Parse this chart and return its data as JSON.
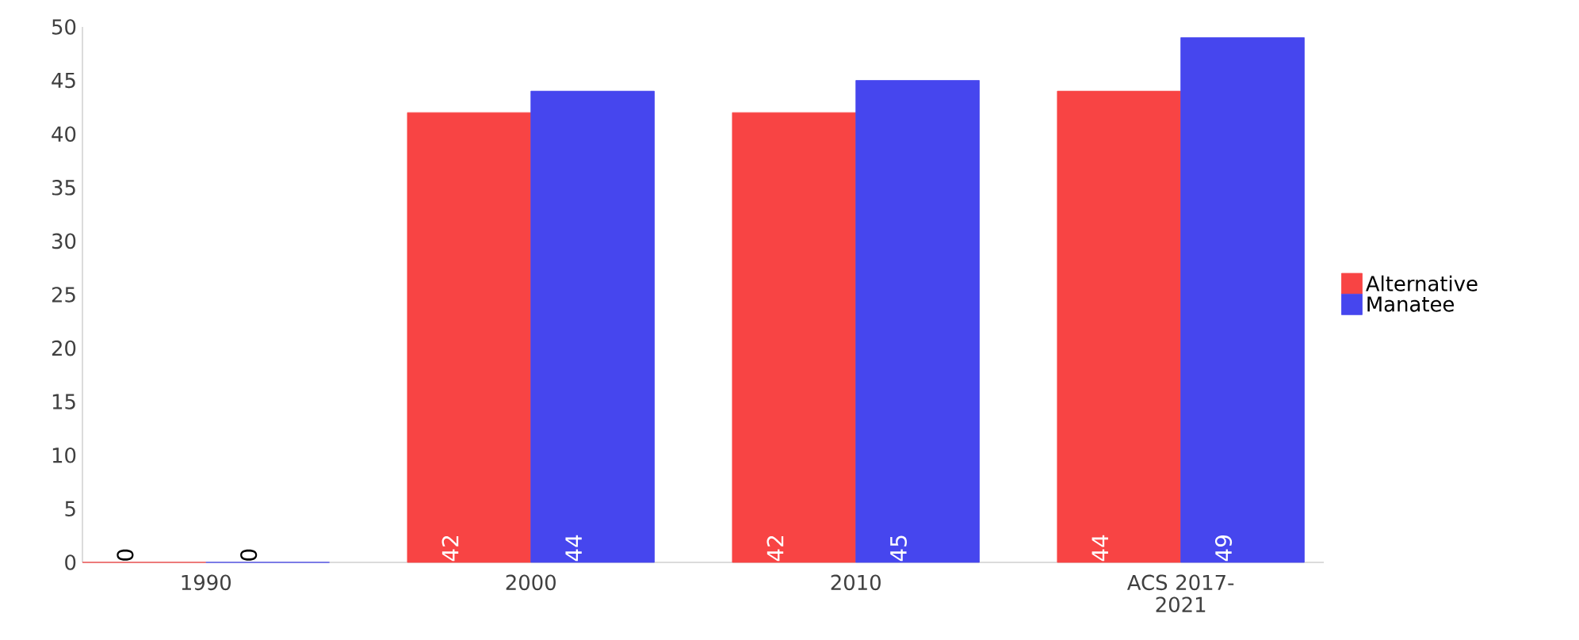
{
  "chart_data": {
    "type": "bar",
    "categories": [
      "1990",
      "2000",
      "2010",
      "ACS 2017-2021"
    ],
    "series": [
      {
        "name": "Alternative",
        "color": "#f84444",
        "values": [
          0,
          42,
          42,
          44
        ]
      },
      {
        "name": "Manatee",
        "color": "#4646ee",
        "values": [
          0,
          44,
          45,
          49
        ]
      }
    ],
    "ylim": [
      0,
      50
    ],
    "yticks": [
      0,
      5,
      10,
      15,
      20,
      25,
      30,
      35,
      40,
      45,
      50
    ],
    "data_labels": true,
    "legend": "right",
    "grid": false
  }
}
